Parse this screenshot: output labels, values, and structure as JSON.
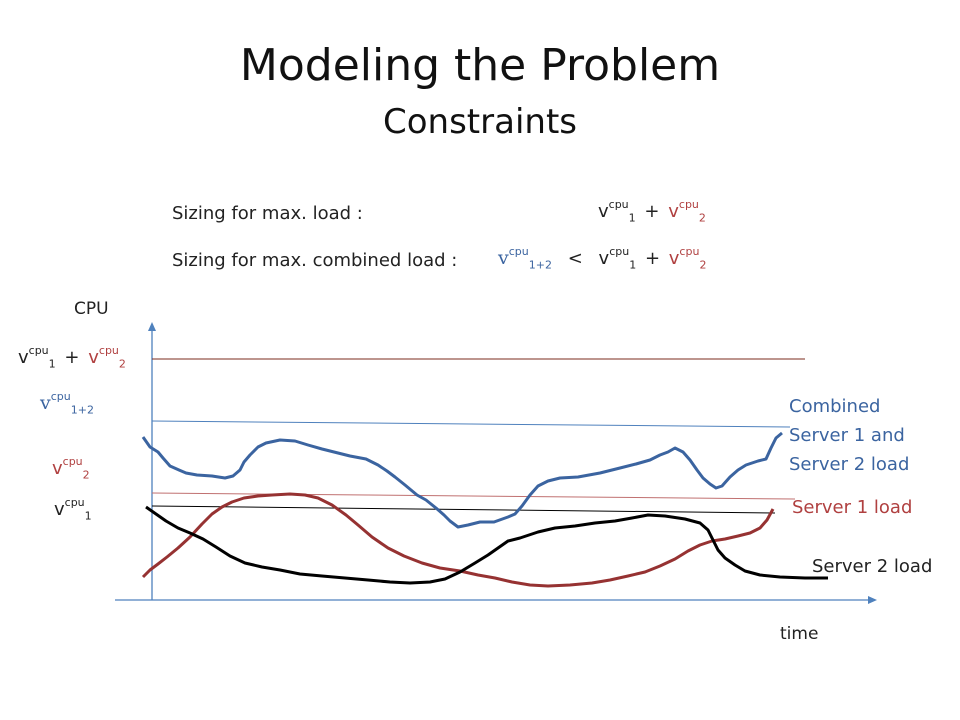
{
  "slide": {
    "title": "Modeling the Problem",
    "subtitle": "Constraints"
  },
  "equations": {
    "max_load_label": "Sizing for max. load :",
    "combined_label": "Sizing for max. combined load :",
    "less_than": "<",
    "plus": "+"
  },
  "symbols": {
    "v": "v",
    "cpu": "cpu",
    "sub1": "1",
    "sub2": "2",
    "sub12": "1+2"
  },
  "axes": {
    "y_label": "CPU",
    "x_label": "time"
  },
  "legend": {
    "combined": [
      "Combined",
      "Server 1 and",
      "Server 2 load"
    ],
    "server1": "Server 1 load",
    "server2": "Server 2 load"
  },
  "colors": {
    "combined": "#3b64a0",
    "server1": "#963232",
    "server2": "#000000",
    "axis": "#4f81bd",
    "sum_line": "#7b2b1e",
    "peak_combined_line": "#4f81bd",
    "peak_s1_line": "#c07070",
    "peak_s2_line": "#000000"
  }
}
